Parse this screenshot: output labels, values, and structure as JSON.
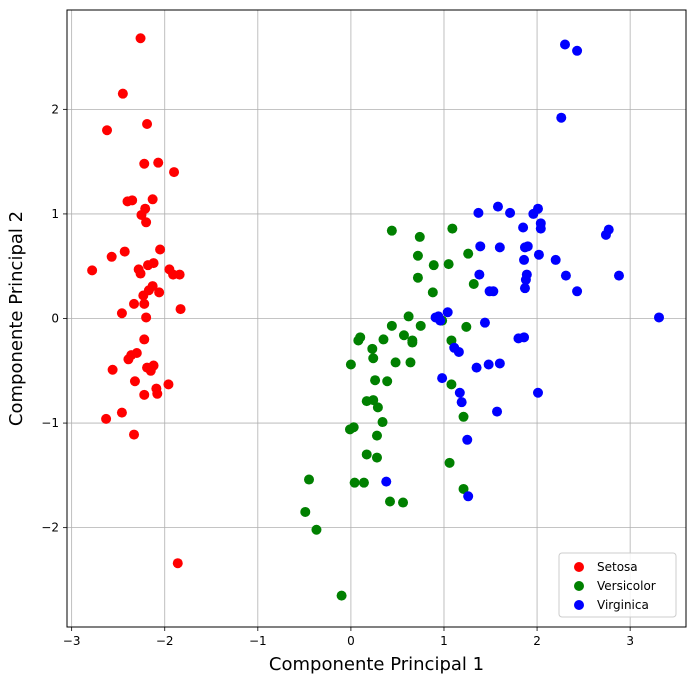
{
  "chart_data": {
    "type": "scatter",
    "title": "",
    "xlabel": "Componente Principal 1",
    "ylabel": "Componente Principal 2",
    "xlim": [
      -3.05,
      3.6
    ],
    "ylim": [
      -2.95,
      2.95
    ],
    "xticks": [
      -3,
      -2,
      -1,
      0,
      1,
      2,
      3
    ],
    "yticks": [
      -2,
      -1,
      0,
      1,
      2
    ],
    "grid": true,
    "legend_position": "lower-right",
    "series": [
      {
        "name": "Setosa",
        "color": "#ff0000",
        "points": [
          [
            -2.26,
            2.68
          ],
          [
            -2.45,
            2.15
          ],
          [
            -2.62,
            1.8
          ],
          [
            -2.19,
            1.86
          ],
          [
            -2.07,
            1.49
          ],
          [
            -2.22,
            1.48
          ],
          [
            -1.9,
            1.4
          ],
          [
            -2.13,
            1.14
          ],
          [
            -2.4,
            1.12
          ],
          [
            -2.35,
            1.13
          ],
          [
            -2.21,
            1.05
          ],
          [
            -2.25,
            0.99
          ],
          [
            -2.2,
            0.92
          ],
          [
            -2.43,
            0.64
          ],
          [
            -2.05,
            0.66
          ],
          [
            -2.57,
            0.59
          ],
          [
            -2.78,
            0.46
          ],
          [
            -2.12,
            0.53
          ],
          [
            -2.18,
            0.51
          ],
          [
            -2.28,
            0.47
          ],
          [
            -2.26,
            0.43
          ],
          [
            -1.95,
            0.47
          ],
          [
            -1.91,
            0.42
          ],
          [
            -1.84,
            0.42
          ],
          [
            -2.13,
            0.31
          ],
          [
            -2.17,
            0.27
          ],
          [
            -2.06,
            0.25
          ],
          [
            -2.23,
            0.22
          ],
          [
            -2.22,
            0.14
          ],
          [
            -2.33,
            0.14
          ],
          [
            -1.83,
            0.09
          ],
          [
            -2.46,
            0.05
          ],
          [
            -2.2,
            0.01
          ],
          [
            -2.22,
            -0.2
          ],
          [
            -2.3,
            -0.33
          ],
          [
            -2.36,
            -0.35
          ],
          [
            -2.39,
            -0.39
          ],
          [
            -2.12,
            -0.45
          ],
          [
            -2.19,
            -0.47
          ],
          [
            -2.15,
            -0.5
          ],
          [
            -2.56,
            -0.49
          ],
          [
            -2.32,
            -0.6
          ],
          [
            -1.96,
            -0.63
          ],
          [
            -2.09,
            -0.67
          ],
          [
            -2.08,
            -0.72
          ],
          [
            -2.22,
            -0.73
          ],
          [
            -2.46,
            -0.9
          ],
          [
            -2.63,
            -0.96
          ],
          [
            -2.33,
            -1.11
          ],
          [
            -1.86,
            -2.34
          ]
        ]
      },
      {
        "name": "Versicolor",
        "color": "#008000",
        "points": [
          [
            0.44,
            0.84
          ],
          [
            0.74,
            0.78
          ],
          [
            1.09,
            0.86
          ],
          [
            0.72,
            0.6
          ],
          [
            1.05,
            0.52
          ],
          [
            0.89,
            0.51
          ],
          [
            1.26,
            0.62
          ],
          [
            0.72,
            0.39
          ],
          [
            1.32,
            0.33
          ],
          [
            0.88,
            0.25
          ],
          [
            0.62,
            0.02
          ],
          [
            0.75,
            -0.07
          ],
          [
            0.44,
            -0.07
          ],
          [
            0.57,
            -0.16
          ],
          [
            0.66,
            -0.21
          ],
          [
            0.66,
            -0.23
          ],
          [
            0.35,
            -0.2
          ],
          [
            0.1,
            -0.18
          ],
          [
            0.08,
            -0.21
          ],
          [
            1.08,
            -0.21
          ],
          [
            1.24,
            -0.08
          ],
          [
            0.98,
            -0.02
          ],
          [
            0.23,
            -0.29
          ],
          [
            0.24,
            -0.38
          ],
          [
            0.48,
            -0.42
          ],
          [
            0.64,
            -0.42
          ],
          [
            0.0,
            -0.44
          ],
          [
            0.26,
            -0.59
          ],
          [
            0.39,
            -0.6
          ],
          [
            1.08,
            -0.63
          ],
          [
            0.17,
            -0.79
          ],
          [
            0.24,
            -0.78
          ],
          [
            0.29,
            -0.85
          ],
          [
            0.34,
            -0.99
          ],
          [
            0.03,
            -1.04
          ],
          [
            -0.01,
            -1.06
          ],
          [
            0.28,
            -1.12
          ],
          [
            0.17,
            -1.3
          ],
          [
            0.28,
            -1.33
          ],
          [
            1.06,
            -1.38
          ],
          [
            1.21,
            -0.94
          ],
          [
            1.21,
            -1.63
          ],
          [
            -0.45,
            -1.54
          ],
          [
            0.04,
            -1.57
          ],
          [
            0.14,
            -1.57
          ],
          [
            -0.49,
            -1.85
          ],
          [
            0.42,
            -1.75
          ],
          [
            0.56,
            -1.76
          ],
          [
            -0.37,
            -2.02
          ],
          [
            -0.1,
            -2.65
          ]
        ]
      },
      {
        "name": "Virginica",
        "color": "#0000ff",
        "points": [
          [
            2.3,
            2.62
          ],
          [
            2.43,
            2.56
          ],
          [
            2.26,
            1.92
          ],
          [
            1.58,
            1.07
          ],
          [
            1.37,
            1.01
          ],
          [
            1.71,
            1.01
          ],
          [
            1.96,
            1.0
          ],
          [
            2.01,
            1.05
          ],
          [
            1.85,
            0.87
          ],
          [
            2.04,
            0.91
          ],
          [
            2.04,
            0.86
          ],
          [
            1.39,
            0.69
          ],
          [
            1.6,
            0.68
          ],
          [
            1.87,
            0.68
          ],
          [
            1.9,
            0.69
          ],
          [
            2.77,
            0.85
          ],
          [
            2.74,
            0.8
          ],
          [
            2.2,
            0.56
          ],
          [
            1.86,
            0.56
          ],
          [
            2.02,
            0.61
          ],
          [
            1.38,
            0.42
          ],
          [
            1.89,
            0.42
          ],
          [
            2.31,
            0.41
          ],
          [
            2.88,
            0.41
          ],
          [
            1.88,
            0.37
          ],
          [
            1.49,
            0.26
          ],
          [
            1.53,
            0.26
          ],
          [
            2.43,
            0.26
          ],
          [
            1.87,
            0.29
          ],
          [
            1.04,
            0.06
          ],
          [
            3.31,
            0.01
          ],
          [
            0.94,
            0.02
          ],
          [
            0.96,
            -0.02
          ],
          [
            1.44,
            -0.04
          ],
          [
            1.11,
            -0.28
          ],
          [
            1.16,
            -0.32
          ],
          [
            1.8,
            -0.19
          ],
          [
            1.86,
            -0.18
          ],
          [
            1.35,
            -0.47
          ],
          [
            1.48,
            -0.44
          ],
          [
            1.6,
            -0.43
          ],
          [
            0.98,
            -0.57
          ],
          [
            1.17,
            -0.71
          ],
          [
            1.19,
            -0.8
          ],
          [
            1.57,
            -0.89
          ],
          [
            2.01,
            -0.71
          ],
          [
            1.25,
            -1.16
          ],
          [
            0.38,
            -1.56
          ],
          [
            1.26,
            -1.7
          ],
          [
            0.91,
            0.01
          ]
        ]
      }
    ]
  }
}
